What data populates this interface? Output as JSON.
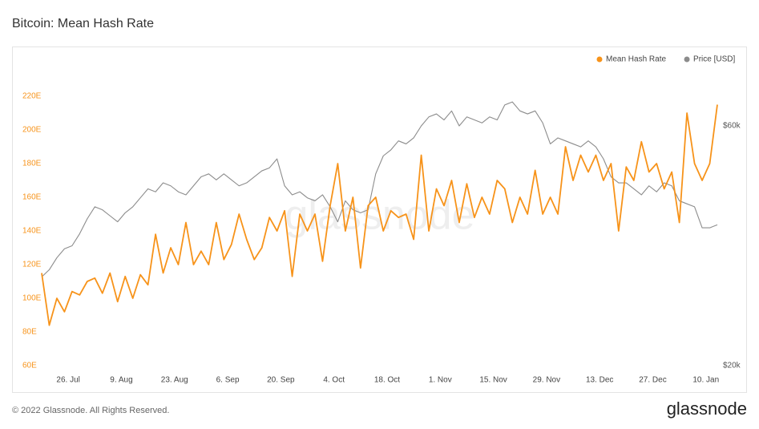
{
  "chart_data": {
    "type": "line",
    "title": "Bitcoin: Mean Hash Rate",
    "watermark": "glassnode",
    "x": [
      0,
      2,
      4,
      6,
      8,
      10,
      12,
      14,
      16,
      18,
      20,
      22,
      24,
      26,
      28,
      30,
      32,
      34,
      36,
      38,
      40,
      42,
      44,
      46,
      48,
      50,
      52,
      54,
      56,
      58,
      60,
      62,
      64,
      66,
      68,
      70,
      72,
      74,
      76,
      78,
      80,
      82,
      84,
      86,
      88,
      90,
      92,
      94,
      96,
      98,
      100,
      102,
      104,
      106,
      108,
      110,
      112,
      114,
      116,
      118,
      120,
      122,
      124,
      126,
      128,
      130,
      132,
      134,
      136,
      138,
      140,
      142,
      144,
      146,
      148,
      150,
      152,
      154,
      156,
      158,
      160,
      162,
      164,
      166,
      168,
      170,
      172,
      174,
      176,
      178
    ],
    "xlim": [
      0,
      178
    ],
    "xticks": [
      {
        "value": 7,
        "label": "26. Jul"
      },
      {
        "value": 21,
        "label": "9. Aug"
      },
      {
        "value": 35,
        "label": "23. Aug"
      },
      {
        "value": 49,
        "label": "6. Sep"
      },
      {
        "value": 63,
        "label": "20. Sep"
      },
      {
        "value": 77,
        "label": "4. Oct"
      },
      {
        "value": 91,
        "label": "18. Oct"
      },
      {
        "value": 105,
        "label": "1. Nov"
      },
      {
        "value": 119,
        "label": "15. Nov"
      },
      {
        "value": 133,
        "label": "29. Nov"
      },
      {
        "value": 147,
        "label": "13. Dec"
      },
      {
        "value": 161,
        "label": "27. Dec"
      },
      {
        "value": 175,
        "label": "10. Jan"
      }
    ],
    "ylim": [
      60,
      230
    ],
    "yticks": [
      {
        "value": 60,
        "label": "60E"
      },
      {
        "value": 80,
        "label": "80E"
      },
      {
        "value": 100,
        "label": "100E"
      },
      {
        "value": 120,
        "label": "120E"
      },
      {
        "value": 140,
        "label": "140E"
      },
      {
        "value": 160,
        "label": "160E"
      },
      {
        "value": 180,
        "label": "180E"
      },
      {
        "value": 200,
        "label": "200E"
      },
      {
        "value": 220,
        "label": "220E"
      }
    ],
    "y2lim": [
      20000,
      67760
    ],
    "y2ticks": [
      {
        "value": 20000,
        "label": "$20k"
      },
      {
        "value": 60000,
        "label": "$60k"
      }
    ],
    "legend": "top-right",
    "series": [
      {
        "name": "Mean Hash Rate",
        "color": "#f7931a",
        "values": [
          115,
          84,
          100,
          92,
          104,
          102,
          110,
          112,
          103,
          115,
          98,
          113,
          100,
          114,
          108,
          138,
          115,
          130,
          120,
          145,
          120,
          128,
          120,
          145,
          123,
          132,
          150,
          135,
          123,
          130,
          148,
          140,
          152,
          113,
          150,
          140,
          150,
          122,
          155,
          180,
          140,
          160,
          118,
          155,
          160,
          140,
          152,
          148,
          150,
          135,
          185,
          140,
          165,
          155,
          170,
          145,
          168,
          148,
          160,
          150,
          170,
          165,
          145,
          160,
          150,
          176,
          150,
          160,
          150,
          190,
          170,
          185,
          175,
          185,
          170,
          180,
          140,
          178,
          170,
          193,
          175,
          180,
          165,
          175,
          145,
          210,
          180,
          170,
          180,
          215
        ]
      },
      {
        "name": "Price [USD]",
        "color": "#8c8c8c",
        "axis": "y2",
        "values": [
          34800,
          36000,
          38000,
          39500,
          40000,
          42000,
          44500,
          46500,
          46000,
          45000,
          44000,
          45500,
          46500,
          48000,
          49500,
          49000,
          50500,
          50000,
          49000,
          48500,
          50000,
          51500,
          52000,
          51000,
          52000,
          51000,
          50000,
          50500,
          51500,
          52500,
          53000,
          54500,
          50000,
          48500,
          49000,
          48000,
          47500,
          48500,
          46500,
          44000,
          47500,
          46000,
          45500,
          46000,
          52000,
          55000,
          56000,
          57500,
          57000,
          58000,
          60000,
          61500,
          62000,
          61000,
          62500,
          60000,
          61500,
          61000,
          60500,
          61500,
          61000,
          63500,
          64000,
          62500,
          62000,
          62500,
          60500,
          57000,
          58000,
          57500,
          57000,
          56500,
          57500,
          56500,
          54500,
          51500,
          50500,
          50500,
          49500,
          48500,
          50000,
          49000,
          50500,
          50000,
          47500,
          47000,
          46500,
          43000,
          43000,
          43500
        ]
      }
    ]
  },
  "footer": {
    "copyright": "© 2022 Glassnode. All Rights Reserved.",
    "logo": "glassnode"
  }
}
